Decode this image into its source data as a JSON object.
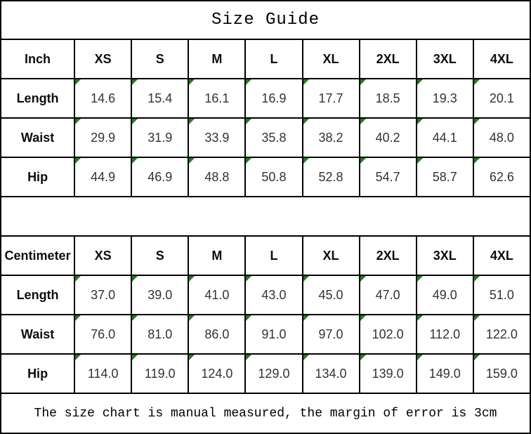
{
  "title": "Size Guide",
  "footer_note": "The size chart is manual measured, the margin of error is 3cm",
  "colors": {
    "cell_marker_green": "#1e7e1e",
    "border_black": "#000000",
    "background": "#ffffff"
  },
  "inch_table": {
    "unit_label": "Inch",
    "sizes": [
      "XS",
      "S",
      "M",
      "L",
      "XL",
      "2XL",
      "3XL",
      "4XL"
    ],
    "rows": [
      {
        "label": "Length",
        "values": [
          "14.6",
          "15.4",
          "16.1",
          "16.9",
          "17.7",
          "18.5",
          "19.3",
          "20.1"
        ]
      },
      {
        "label": "Waist",
        "values": [
          "29.9",
          "31.9",
          "33.9",
          "35.8",
          "38.2",
          "40.2",
          "44.1",
          "48.0"
        ]
      },
      {
        "label": "Hip",
        "values": [
          "44.9",
          "46.9",
          "48.8",
          "50.8",
          "52.8",
          "54.7",
          "58.7",
          "62.6"
        ]
      }
    ]
  },
  "cm_table": {
    "unit_label": "Centimeter",
    "sizes": [
      "XS",
      "S",
      "M",
      "L",
      "XL",
      "2XL",
      "3XL",
      "4XL"
    ],
    "rows": [
      {
        "label": "Length",
        "values": [
          "37.0",
          "39.0",
          "41.0",
          "43.0",
          "45.0",
          "47.0",
          "49.0",
          "51.0"
        ]
      },
      {
        "label": "Waist",
        "values": [
          "76.0",
          "81.0",
          "86.0",
          "91.0",
          "97.0",
          "102.0",
          "112.0",
          "122.0"
        ]
      },
      {
        "label": "Hip",
        "values": [
          "114.0",
          "119.0",
          "124.0",
          "129.0",
          "134.0",
          "139.0",
          "149.0",
          "159.0"
        ]
      }
    ]
  }
}
